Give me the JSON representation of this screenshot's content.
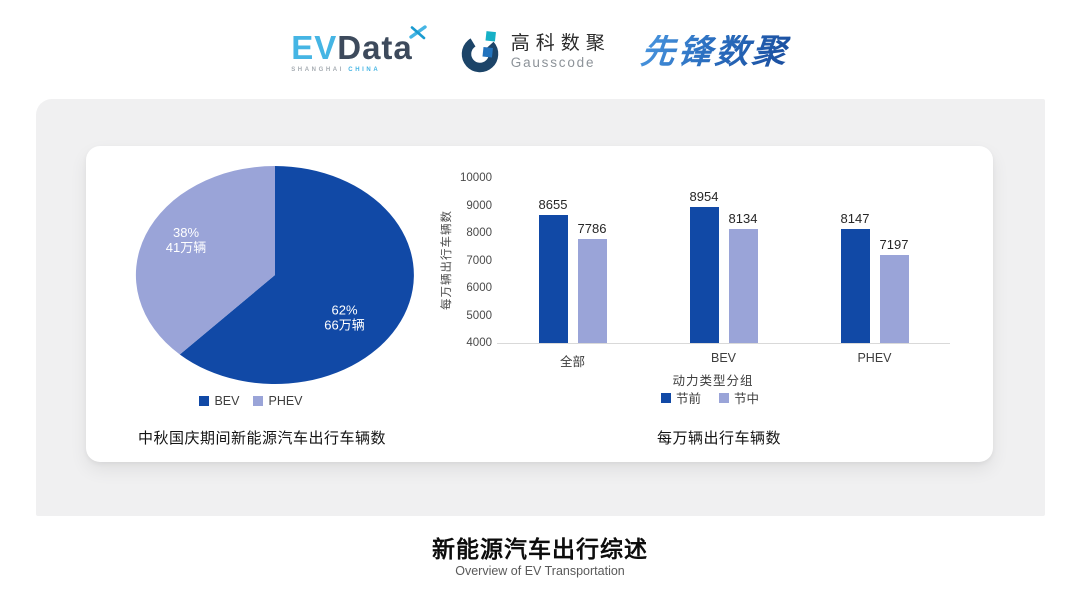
{
  "header": {
    "logos": {
      "evdata": {
        "part1": "EV",
        "part2": "Data",
        "subtext1": "SHANGHAI",
        "subtext2": "CHINA",
        "colors": {
          "part1": "#45b5e4",
          "part2": "#3d4a5c"
        }
      },
      "gausscode": {
        "name_cn": "高科数聚",
        "name_en": "Gausscode",
        "colors": {
          "ring": "#1c4468",
          "square_teal": "#16b0c6",
          "square_blue": "#2273bd"
        }
      },
      "xianfeng": {
        "text": "先锋数聚",
        "color": "#2b6fc0"
      }
    }
  },
  "colors": {
    "series_dark_blue": "#1149a6",
    "series_light_blue": "#9aa4d8",
    "panel_background": "#f0f0f1",
    "card_background": "#ffffff"
  },
  "chart_data": [
    {
      "type": "pie",
      "title": "中秋国庆期间新能源汽车出行车辆数",
      "slices": [
        {
          "label": "BEV",
          "percent": 62,
          "value_label": "66万辆",
          "color": "#1149a6"
        },
        {
          "label": "PHEV",
          "percent": 38,
          "value_label": "41万辆",
          "color": "#9aa4d8"
        }
      ],
      "legend_position": "bottom",
      "start_angle": "top",
      "direction": "clockwise"
    },
    {
      "type": "bar",
      "title": "每万辆出行车辆数",
      "categories": [
        "全部",
        "BEV",
        "PHEV"
      ],
      "series": [
        {
          "name": "节前",
          "values": [
            8655,
            8954,
            8147
          ],
          "color": "#1149a6"
        },
        {
          "name": "节中",
          "values": [
            7786,
            8134,
            7197
          ],
          "color": "#9aa4d8"
        }
      ],
      "xlabel": "动力类型分组",
      "ylabel": "每万辆出行车辆数",
      "ylim": [
        4000,
        10000
      ],
      "ytick_step": 1000,
      "grid": false,
      "legend_position": "bottom"
    }
  ],
  "footer": {
    "title": "新能源汽车出行综述",
    "subtitle": "Overview of EV Transportation"
  }
}
